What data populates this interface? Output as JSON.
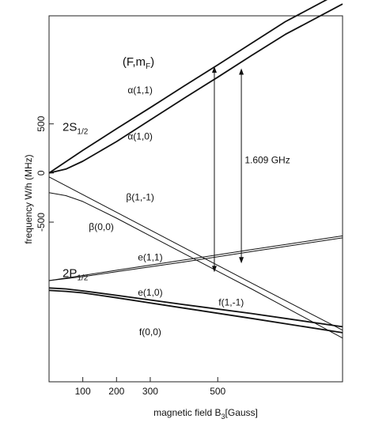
{
  "chart_data": {
    "type": "line",
    "xlabel": "magnetic field",
    "xlabel_field_symbol": "B",
    "xlabel_field_sub": "3",
    "xlabel_unit": "[Gauss]",
    "ylabel": "frequency W/h (MHz)",
    "x_ticks": [
      {
        "value": 100,
        "label": "100"
      },
      {
        "value": 200,
        "label": "200"
      },
      {
        "value": 300,
        "label": "300"
      },
      {
        "value": 500,
        "label": "500"
      }
    ],
    "y_ticks": [
      {
        "value": 500,
        "label": "500"
      },
      {
        "value": 0,
        "label": "0"
      },
      {
        "value": -500,
        "label": "-500"
      }
    ],
    "xlim": [
      0,
      870
    ],
    "ylim": [
      -2125,
      1600
    ],
    "grid": false,
    "legend_header": {
      "main": "(F,m",
      "sub": "F",
      "close": ")"
    },
    "state_labels": [
      {
        "main": "2S",
        "sub": "1/2",
        "x": 40,
        "y": 430
      },
      {
        "main": "2P",
        "sub": "1/2",
        "x": 40,
        "y": -1060
      }
    ],
    "level_labels": [
      {
        "text": "α(1,1)",
        "x": 270,
        "y": 810
      },
      {
        "text": "α(1,0)",
        "x": 270,
        "y": 340
      },
      {
        "text": "β(1,-1)",
        "x": 270,
        "y": -280
      },
      {
        "text": "β(0,0)",
        "x": 155,
        "y": -580
      },
      {
        "text": "e(1,1)",
        "x": 300,
        "y": -890
      },
      {
        "text": "e(1,0)",
        "x": 300,
        "y": -1250
      },
      {
        "text": "f(1,-1)",
        "x": 540,
        "y": -1350
      },
      {
        "text": "f(0,0)",
        "x": 300,
        "y": -1650
      }
    ],
    "series": [
      {
        "points": [
          [
            0,
            0
          ],
          [
            100,
            230
          ],
          [
            200,
            450
          ],
          [
            300,
            665
          ],
          [
            400,
            885
          ],
          [
            500,
            1100
          ],
          [
            600,
            1320
          ],
          [
            700,
            1540
          ],
          [
            870,
            1850
          ]
        ],
        "weight": "heavy"
      },
      {
        "points": [
          [
            0,
            0
          ],
          [
            50,
            40
          ],
          [
            100,
            120
          ],
          [
            200,
            320
          ],
          [
            300,
            540
          ],
          [
            400,
            760
          ],
          [
            500,
            975
          ],
          [
            600,
            1195
          ],
          [
            700,
            1410
          ],
          [
            870,
            1720
          ]
        ],
        "weight": "heavy"
      },
      {
        "points": [
          [
            0,
            -40
          ],
          [
            200,
            -400
          ],
          [
            400,
            -760
          ],
          [
            600,
            -1120
          ],
          [
            870,
            -1600
          ]
        ],
        "weight": "light"
      },
      {
        "points": [
          [
            0,
            -200
          ],
          [
            50,
            -230
          ],
          [
            100,
            -290
          ],
          [
            200,
            -460
          ],
          [
            300,
            -640
          ],
          [
            400,
            -820
          ],
          [
            500,
            -1000
          ],
          [
            600,
            -1180
          ],
          [
            870,
            -1680
          ]
        ],
        "weight": "light"
      },
      {
        "points": [
          [
            0,
            -1095
          ],
          [
            200,
            -990
          ],
          [
            400,
            -885
          ],
          [
            600,
            -780
          ],
          [
            870,
            -640
          ]
        ],
        "weight": "light"
      },
      {
        "points": [
          [
            0,
            -1095
          ],
          [
            100,
            -1055
          ],
          [
            200,
            -1005
          ],
          [
            400,
            -905
          ],
          [
            600,
            -800
          ],
          [
            870,
            -660
          ]
        ],
        "weight": "light"
      },
      {
        "points": [
          [
            0,
            -1170
          ],
          [
            50,
            -1180
          ],
          [
            100,
            -1200
          ],
          [
            200,
            -1245
          ],
          [
            400,
            -1340
          ],
          [
            600,
            -1430
          ],
          [
            870,
            -1565
          ]
        ],
        "weight": "heavy"
      },
      {
        "points": [
          [
            0,
            -1195
          ],
          [
            50,
            -1205
          ],
          [
            100,
            -1220
          ],
          [
            200,
            -1270
          ],
          [
            400,
            -1375
          ],
          [
            600,
            -1480
          ],
          [
            870,
            -1625
          ]
        ],
        "weight": "heavy"
      }
    ],
    "annotation": {
      "text": "1.609 GHz",
      "label_x": 580,
      "label_y": 100,
      "arrows": [
        {
          "x": 490,
          "y_from": 1085,
          "y_to": -1010
        },
        {
          "x": 570,
          "y_from": 1065,
          "y_to": -920
        }
      ]
    }
  }
}
